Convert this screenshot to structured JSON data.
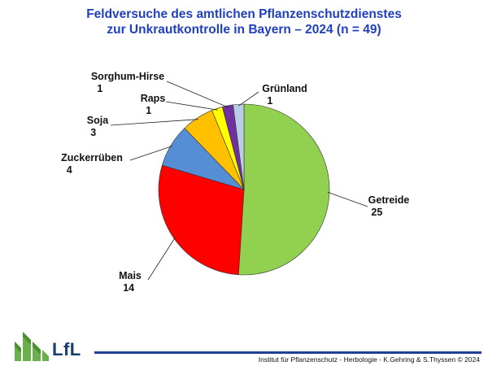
{
  "title_line1": "Feldversuche des amtlichen Pflanzenschutzdienstes",
  "title_line2": "zur Unkrautkontrolle in Bayern – 2024 (n = 49)",
  "chart_data": {
    "type": "pie",
    "title": "Feldversuche des amtlichen Pflanzenschutzdienstes zur Unkrautkontrolle in Bayern – 2024 (n = 49)",
    "slices": [
      {
        "label": "Getreide",
        "value": 25,
        "color": "#92d050"
      },
      {
        "label": "Mais",
        "value": 14,
        "color": "#ff0000"
      },
      {
        "label": "Zuckerrüben",
        "value": 4,
        "color": "#558ed5"
      },
      {
        "label": "Soja",
        "value": 3,
        "color": "#ffc000"
      },
      {
        "label": "Raps",
        "value": 1,
        "color": "#ffff00"
      },
      {
        "label": "Sorghum-Hirse",
        "value": 1,
        "color": "#7030a0"
      },
      {
        "label": "Grünland",
        "value": 1,
        "color": "#b9cde5"
      }
    ]
  },
  "logo": {
    "text": "LfL"
  },
  "footer": "Institut für Pflanzenschutz  -  Herbologie  -  K.Gehring & S.Thyssen   © 2024"
}
